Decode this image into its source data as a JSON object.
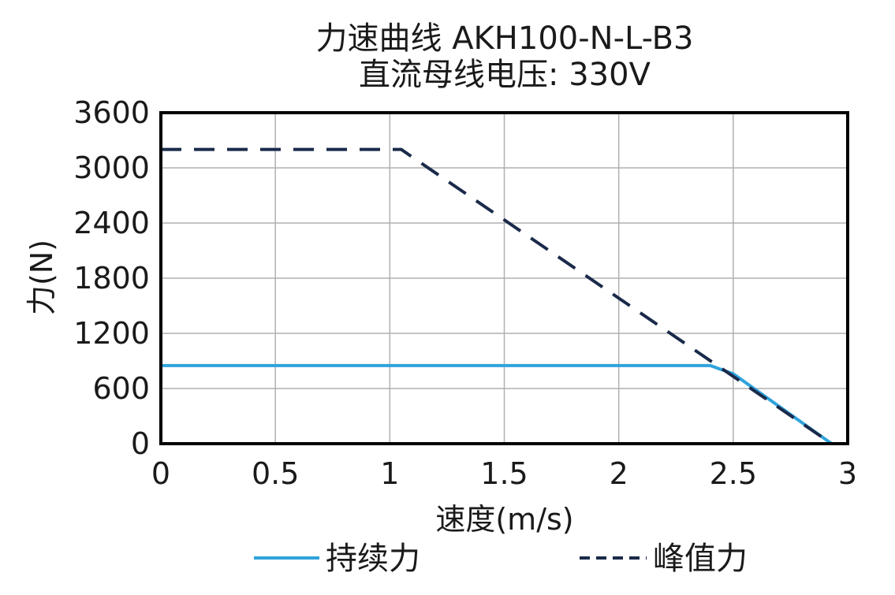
{
  "chart_data": {
    "type": "line",
    "title": "力速曲线 AKH100-N-L-B3",
    "subtitle": "直流母线电压: 330V",
    "xlabel": "速度(m/s)",
    "ylabel": "力(N)",
    "xlim": [
      0,
      3
    ],
    "ylim": [
      0,
      3600
    ],
    "x_ticks": [
      "0",
      "0.5",
      "1",
      "1.5",
      "2",
      "2.5",
      "3"
    ],
    "y_ticks": [
      "0",
      "600",
      "1200",
      "1800",
      "2400",
      "3000",
      "3600"
    ],
    "grid": true,
    "legend_position": "bottom",
    "series": [
      {
        "name": "持续力",
        "style": "solid",
        "color": "#2fa3dc",
        "points": [
          [
            0,
            850
          ],
          [
            2.4,
            850
          ],
          [
            2.5,
            760
          ],
          [
            2.93,
            0
          ]
        ]
      },
      {
        "name": "峰值力",
        "style": "dashed",
        "color": "#1a2a4a",
        "points": [
          [
            0,
            3200
          ],
          [
            1.05,
            3200
          ],
          [
            2.93,
            0
          ]
        ]
      }
    ]
  }
}
